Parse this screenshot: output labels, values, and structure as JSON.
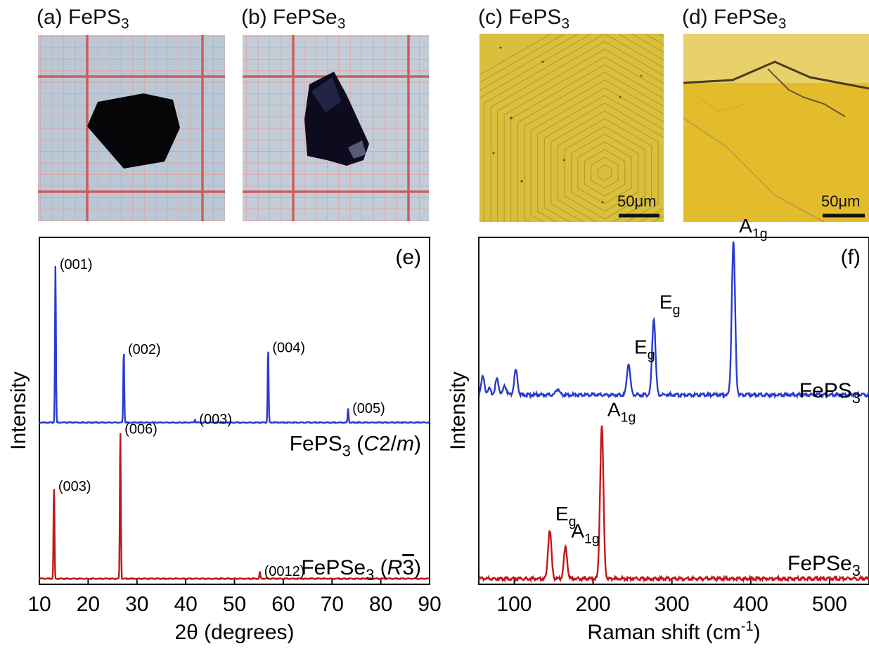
{
  "panels": {
    "a": {
      "prefix": "(a) FePS",
      "sub": "3"
    },
    "b": {
      "prefix": "(b) FePSe",
      "sub": "3"
    },
    "c": {
      "prefix": "(c) FePS",
      "sub": "3",
      "scale_bar": "50μm"
    },
    "d": {
      "prefix": "(d) FePSe",
      "sub": "3",
      "scale_bar": "50μm"
    }
  },
  "colors": {
    "feps3": "#2a3bd0",
    "fepse3": "#c01818",
    "grid_paper": "#b9c6d3",
    "grid_line": "#d46a6a",
    "crystal": "#0a0a12",
    "optical": "#d9b318"
  },
  "chart_data": [
    {
      "type": "line",
      "panel_tag": "(e)",
      "xlabel": "2θ (degrees)",
      "ylabel": "Intensity",
      "xlim": [
        10,
        90
      ],
      "xticks": [
        "10",
        "20",
        "30",
        "40",
        "50",
        "60",
        "70",
        "80",
        "90"
      ],
      "series": [
        {
          "name": "FePS3 (C2/m)",
          "name_parts": {
            "formula": "FePS",
            "sub": "3",
            "open": " (",
            "italic_pre": "C",
            "mid": "2/",
            "italic_post": "m",
            "close": ")"
          },
          "baseline": 0.45,
          "peaks": [
            {
              "x": 13.3,
              "height": 0.455,
              "label": "(001)"
            },
            {
              "x": 27.3,
              "height": 0.21,
              "label": "(002)"
            },
            {
              "x": 41.9,
              "height": 0.008,
              "label": "(003)"
            },
            {
              "x": 56.9,
              "height": 0.215,
              "label": "(004)"
            },
            {
              "x": 73.3,
              "height": 0.04,
              "label": "(005)"
            }
          ]
        },
        {
          "name": "FePSe3 (R3̄)",
          "name_parts": {
            "formula": "FePSe",
            "sub": "3",
            "open": " (",
            "italic_pre": "R",
            "overbar": "3",
            "close": ")"
          },
          "baseline": 0.0,
          "peaks": [
            {
              "x": 13.0,
              "height": 0.265,
              "label": "(003)"
            },
            {
              "x": 26.6,
              "height": 0.43,
              "label": "(006)"
            },
            {
              "x": 55.2,
              "height": 0.02,
              "label": "(0012)"
            }
          ]
        }
      ]
    },
    {
      "type": "line",
      "panel_tag": "(f)",
      "xlabel": "Raman shift (cm",
      "xlabel_sup": "-1",
      "xlabel_close": ")",
      "ylabel": "Intensity",
      "xlim": [
        55,
        550
      ],
      "xticks": [
        "100",
        "200",
        "300",
        "400",
        "500"
      ],
      "series": [
        {
          "name": "FePS3",
          "name_parts": {
            "formula": "FePS",
            "sub": "3"
          },
          "baseline": 0.53,
          "peaks": [
            {
              "x": 245,
              "height": 0.09,
              "label": "E",
              "label_sub": "g"
            },
            {
              "x": 277,
              "height": 0.22,
              "label": "E",
              "label_sub": "g"
            },
            {
              "x": 378,
              "height": 0.44,
              "label": "A",
              "label_sub": "1g"
            }
          ],
          "low_freq_features": [
            {
              "x": 60,
              "height": 0.15
            },
            {
              "x": 68,
              "height": 0.05
            },
            {
              "x": 78,
              "height": 0.13
            },
            {
              "x": 88,
              "height": 0.07
            },
            {
              "x": 102,
              "height": 0.2
            },
            {
              "x": 155,
              "height": 0.05
            }
          ]
        },
        {
          "name": "FePSe3",
          "name_parts": {
            "formula": "FePSe",
            "sub": "3"
          },
          "baseline": 0.0,
          "peaks": [
            {
              "x": 145,
              "height": 0.14,
              "label": "E",
              "label_sub": "g"
            },
            {
              "x": 165,
              "height": 0.09,
              "label": "A",
              "label_sub": "1g"
            },
            {
              "x": 211,
              "height": 0.44,
              "label": "A",
              "label_sub": "1g"
            }
          ]
        }
      ]
    }
  ]
}
